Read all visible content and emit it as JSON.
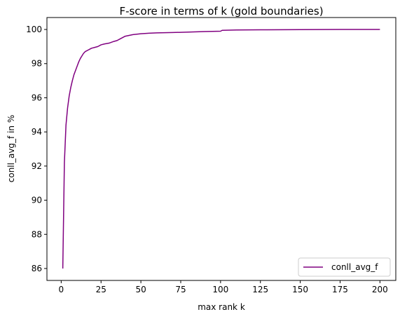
{
  "chart_data": {
    "type": "line",
    "title": "F-score in terms of k (gold boundaries)",
    "xlabel": "max rank k",
    "ylabel": "conll_avg_f in %",
    "xlim": [
      -8.95,
      209.95
    ],
    "ylim": [
      85.3,
      100.7
    ],
    "xticks": [
      0,
      25,
      50,
      75,
      100,
      125,
      150,
      175,
      200
    ],
    "yticks": [
      86,
      88,
      90,
      92,
      94,
      96,
      98,
      100
    ],
    "grid": false,
    "legend_position": "lower right",
    "series": [
      {
        "name": "conll_avg_f",
        "color": "#800080",
        "x": [
          1,
          2,
          3,
          4,
          5,
          6,
          7,
          8,
          9,
          10,
          11,
          12,
          13,
          14,
          15,
          17,
          19,
          21,
          23,
          25,
          27,
          30,
          33,
          35,
          37,
          40,
          45,
          50,
          55,
          60,
          70,
          80,
          90,
          100,
          101,
          110,
          125,
          150,
          175,
          200
        ],
        "values": [
          86.0,
          92.2,
          94.4,
          95.4,
          96.1,
          96.6,
          97.0,
          97.35,
          97.6,
          97.85,
          98.1,
          98.3,
          98.45,
          98.6,
          98.7,
          98.8,
          98.9,
          98.95,
          99.0,
          99.1,
          99.15,
          99.2,
          99.3,
          99.35,
          99.45,
          99.6,
          99.7,
          99.75,
          99.78,
          99.8,
          99.82,
          99.85,
          99.88,
          99.9,
          99.95,
          99.97,
          99.98,
          99.99,
          100.0,
          100.0
        ]
      }
    ]
  }
}
